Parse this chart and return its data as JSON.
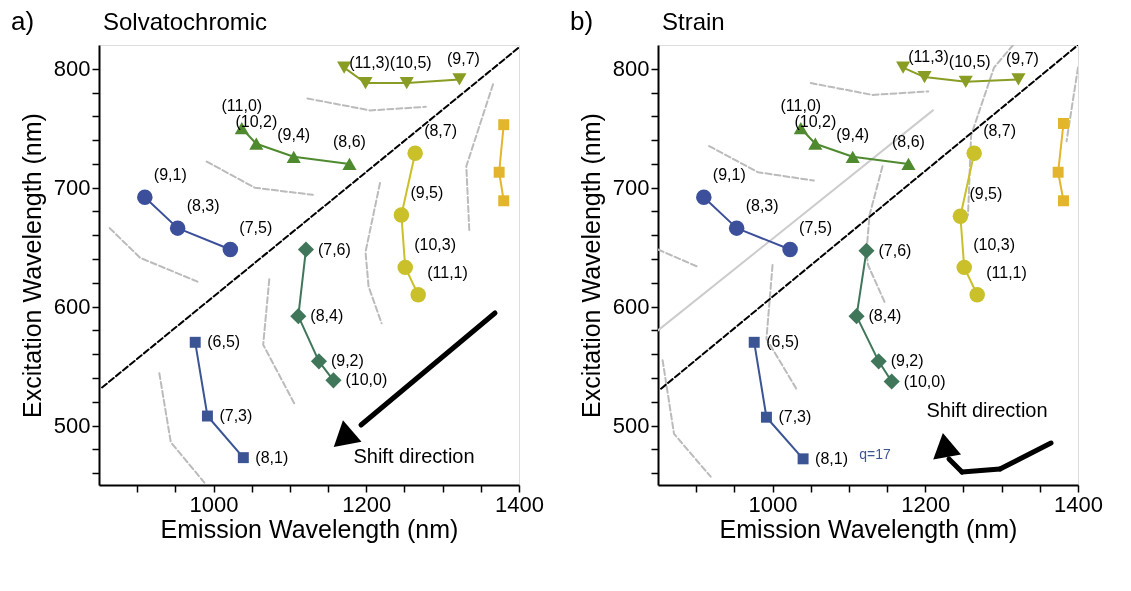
{
  "chart_data": [
    {
      "type": "line",
      "title": "Solvatochromic",
      "xlabel": "Emission Wavelength (nm)",
      "ylabel": "Excitation Wavelength (nm)",
      "xlim": [
        850,
        1400
      ],
      "ylim": [
        450,
        820
      ],
      "xticks": [
        {
          "value": 900,
          "label": null
        },
        {
          "value": 950,
          "label": null
        },
        1000,
        {
          "value": 1050,
          "label": null
        },
        {
          "value": 1100,
          "label": null
        },
        {
          "value": 1150,
          "label": null
        },
        1200,
        {
          "value": 1250,
          "label": null
        },
        {
          "value": 1300,
          "label": null
        },
        {
          "value": 1350,
          "label": null
        },
        1400
      ],
      "yticks": [
        {
          "value": 460,
          "label": null
        },
        {
          "value": 480,
          "label": null
        },
        500,
        {
          "value": 520,
          "label": null
        },
        {
          "value": 540,
          "label": null
        },
        {
          "value": 560,
          "label": null
        },
        {
          "value": 580,
          "label": null
        },
        600,
        {
          "value": 620,
          "label": null
        },
        {
          "value": 640,
          "label": null
        },
        {
          "value": 660,
          "label": null
        },
        {
          "value": 680,
          "label": null
        },
        700,
        {
          "value": 720,
          "label": null
        },
        {
          "value": 740,
          "label": null
        },
        {
          "value": 760,
          "label": null
        },
        {
          "value": 780,
          "label": null
        },
        800
      ],
      "grid": false,
      "annotations": [
        "a)",
        "Shift direction",
        {
          "text": "(9,1)",
          "x": 910,
          "y": 692
        },
        {
          "text": "(8,3)",
          "x": 953,
          "y": 666
        },
        {
          "text": "(7,5)",
          "x": 1022,
          "y": 648
        },
        {
          "text": "(11,0)",
          "x": 1037,
          "y": 750
        },
        {
          "text": "(10,2)",
          "x": 1056,
          "y": 737
        },
        {
          "text": "(9,4)",
          "x": 1105,
          "y": 726
        },
        {
          "text": "(8,6)",
          "x": 1178,
          "y": 720
        },
        {
          "text": "(11,3)",
          "x": 1199,
          "y": 788
        },
        {
          "text": "(10,5)",
          "x": 1253,
          "y": 788
        },
        {
          "text": "(9,7)",
          "x": 1322,
          "y": 791
        },
        {
          "text": "(8,7)",
          "x": 1264,
          "y": 729
        },
        {
          "text": "(9,5)",
          "x": 1246,
          "y": 677
        },
        {
          "text": "(10,3)",
          "x": 1251,
          "y": 633
        },
        {
          "text": "(11,1)",
          "x": 1268,
          "y": 610
        },
        {
          "text": "(7,6)",
          "x": 1121,
          "y": 648
        },
        {
          "text": "(8,4)",
          "x": 1111,
          "y": 592
        },
        {
          "text": "(9,2)",
          "x": 1138,
          "y": 554
        },
        {
          "text": "(10,0)",
          "x": 1157,
          "y": 538
        },
        {
          "text": "(6,5)",
          "x": 976,
          "y": 570
        },
        {
          "text": "(7,3)",
          "x": 992,
          "y": 508
        },
        {
          "text": "(8,1)",
          "x": 1039,
          "y": 473
        }
      ],
      "series": [
        {
          "color": "#bbbbbb",
          "line_style": "dashed",
          "marker": "none",
          "x": [
            1123,
            1205,
            1278
          ],
          "values": [
            775,
            765,
            768
          ]
        },
        {
          "color": "#bbbbbb",
          "line_style": "dashed",
          "marker": "none",
          "x": [
            991,
            1054,
            1130
          ],
          "values": [
            722,
            700,
            694
          ]
        },
        {
          "color": "#bbbbbb",
          "line_style": "dashed",
          "marker": "none",
          "x": [
            864,
            904,
            979
          ],
          "values": [
            666,
            641,
            621
          ]
        },
        {
          "color": "#bbbbbb",
          "line_style": "dashed",
          "marker": "none",
          "x": [
            929,
            944,
            988
          ],
          "values": [
            544,
            486,
            452
          ]
        },
        {
          "color": "#bbbbbb",
          "line_style": "dashed",
          "marker": "none",
          "x": [
            1073,
            1065,
            1107
          ],
          "values": [
            623,
            568,
            517
          ]
        },
        {
          "color": "#bbbbbb",
          "line_style": "dashed",
          "marker": "none",
          "x": [
            1218,
            1199,
            1203,
            1220
          ],
          "values": [
            704,
            646,
            617,
            586
          ]
        },
        {
          "color": "#bbbbbb",
          "line_style": "dashed",
          "marker": "none",
          "x": [
            1366,
            1331,
            1335
          ],
          "values": [
            787,
            718,
            663
          ]
        },
        {
          "color": "#000000",
          "line_style": "dashed",
          "marker": "none",
          "x": [
            854,
            1400
          ],
          "values": [
            532,
            818
          ]
        },
        {
          "color": "#3b4f9a",
          "line_style": "solid",
          "marker": "circle",
          "x": [
            910,
            953,
            1022
          ],
          "values": [
            692,
            666,
            648
          ]
        },
        {
          "color": "#4f8a2f",
          "line_style": "solid",
          "marker": "triangle",
          "x": [
            1037,
            1056,
            1105,
            1178
          ],
          "values": [
            750,
            737,
            726,
            720
          ]
        },
        {
          "color": "#899d24",
          "line_style": "solid",
          "marker": "triangle_down",
          "x": [
            1171,
            1199,
            1253,
            1322
          ],
          "values": [
            801,
            788,
            788,
            791
          ]
        },
        {
          "color": "#c9c02a",
          "line_style": "solid",
          "marker": "circle",
          "x": [
            1264,
            1246,
            1251,
            1268
          ],
          "values": [
            729,
            677,
            633,
            610
          ]
        },
        {
          "color": "#e2b52c",
          "line_style": "solid",
          "marker": "square",
          "x": [
            1380,
            1374,
            1380
          ],
          "values": [
            753,
            713,
            689
          ]
        },
        {
          "color": "#40765a",
          "line_style": "solid",
          "marker": "diamond",
          "x": [
            1121,
            1111,
            1138,
            1157
          ],
          "values": [
            648,
            592,
            554,
            538
          ]
        },
        {
          "color": "#3b5494",
          "line_style": "solid",
          "marker": "square",
          "x": [
            976,
            992,
            1039
          ],
          "values": [
            570,
            508,
            473
          ]
        }
      ]
    },
    {
      "type": "line",
      "title": "Strain",
      "xlabel": "Emission Wavelength (nm)",
      "ylabel": "Excitation Wavelength (nm)",
      "xlim": [
        850,
        1400
      ],
      "ylim": [
        450,
        820
      ],
      "xticks": [
        {
          "value": 900,
          "label": null
        },
        {
          "value": 950,
          "label": null
        },
        1000,
        {
          "value": 1050,
          "label": null
        },
        {
          "value": 1100,
          "label": null
        },
        {
          "value": 1150,
          "label": null
        },
        1200,
        {
          "value": 1250,
          "label": null
        },
        {
          "value": 1300,
          "label": null
        },
        {
          "value": 1350,
          "label": null
        },
        1400
      ],
      "yticks": [
        {
          "value": 460,
          "label": null
        },
        {
          "value": 480,
          "label": null
        },
        500,
        {
          "value": 520,
          "label": null
        },
        {
          "value": 540,
          "label": null
        },
        {
          "value": 560,
          "label": null
        },
        {
          "value": 580,
          "label": null
        },
        600,
        {
          "value": 620,
          "label": null
        },
        {
          "value": 640,
          "label": null
        },
        {
          "value": 660,
          "label": null
        },
        {
          "value": 680,
          "label": null
        },
        700,
        {
          "value": 720,
          "label": null
        },
        {
          "value": 740,
          "label": null
        },
        {
          "value": 760,
          "label": null
        },
        {
          "value": 780,
          "label": null
        },
        800
      ],
      "grid": false,
      "annotations": [
        "b)",
        "Shift direction",
        "q=17",
        {
          "text": "(9,1)",
          "x": 910,
          "y": 692
        },
        {
          "text": "(8,3)",
          "x": 953,
          "y": 666
        },
        {
          "text": "(7,5)",
          "x": 1023,
          "y": 648
        },
        {
          "text": "(11,0)",
          "x": 1037,
          "y": 750
        },
        {
          "text": "(10,2)",
          "x": 1056,
          "y": 737
        },
        {
          "text": "(9,4)",
          "x": 1105,
          "y": 726
        },
        {
          "text": "(8,6)",
          "x": 1178,
          "y": 720
        },
        {
          "text": "(11,3)",
          "x": 1199,
          "y": 793
        },
        {
          "text": "(10,5)",
          "x": 1253,
          "y": 789
        },
        {
          "text": "(9,7)",
          "x": 1322,
          "y": 791
        },
        {
          "text": "(8,7)",
          "x": 1264,
          "y": 729
        },
        {
          "text": "(9,5)",
          "x": 1246,
          "y": 676
        },
        {
          "text": "(10,3)",
          "x": 1251,
          "y": 633
        },
        {
          "text": "(11,1)",
          "x": 1268,
          "y": 610
        },
        {
          "text": "(7,6)",
          "x": 1123,
          "y": 647
        },
        {
          "text": "(8,4)",
          "x": 1110,
          "y": 592
        },
        {
          "text": "(9,2)",
          "x": 1139,
          "y": 554
        },
        {
          "text": "(10,0)",
          "x": 1156,
          "y": 537
        },
        {
          "text": "(6,5)",
          "x": 976,
          "y": 570
        },
        {
          "text": "(7,3)",
          "x": 992,
          "y": 507
        },
        {
          "text": "(8,1)",
          "x": 1040,
          "y": 472
        }
      ],
      "series": [
        {
          "color": "#bbbbbb",
          "line_style": "dashed",
          "marker": "none",
          "x": [
            1050,
            1131,
            1204
          ],
          "values": [
            788,
            778,
            781
          ]
        },
        {
          "color": "#bbbbbb",
          "line_style": "dashed",
          "marker": "none",
          "x": [
            917,
            981,
            1054
          ],
          "values": [
            735,
            713,
            706
          ]
        },
        {
          "color": "#bbbbbb",
          "line_style": "dashed",
          "marker": "none",
          "x": [
            1315,
            1290,
            1260,
            1256
          ],
          "values": [
            820,
            801,
            744,
            677
          ]
        },
        {
          "color": "#bbbbbb",
          "line_style": "dashed",
          "marker": "none",
          "x": [
            1144,
            1127,
            1123,
            1125,
            1148
          ],
          "values": [
            718,
            677,
            646,
            635,
            602
          ]
        },
        {
          "color": "#bbbbbb",
          "line_style": "dashed",
          "marker": "none",
          "x": [
            1000,
            992,
            1033
          ],
          "values": [
            635,
            573,
            529
          ]
        },
        {
          "color": "#bbbbbb",
          "line_style": "dashed",
          "marker": "none",
          "x": [
            850,
            904
          ],
          "values": [
            648,
            633
          ]
        },
        {
          "color": "#bbbbbb",
          "line_style": "dashed",
          "marker": "none",
          "x": [
            856,
            871,
            919
          ],
          "values": [
            555,
            493,
            457
          ]
        },
        {
          "color": "#bbbbbb",
          "line_style": "dashed",
          "marker": "none",
          "x": [
            1400,
            1385
          ],
          "values": [
            801,
            739
          ]
        },
        {
          "color": "#cccccc",
          "line_style": "solid",
          "marker": "none",
          "x": [
            850,
            1210
          ],
          "values": [
            580,
            765
          ]
        },
        {
          "color": "#000000",
          "line_style": "dashed",
          "marker": "none",
          "x": [
            854,
            1400
          ],
          "values": [
            531,
            820
          ]
        },
        {
          "color": "#3b4f9a",
          "line_style": "solid",
          "marker": "circle",
          "x": [
            910,
            953,
            1023
          ],
          "values": [
            692,
            666,
            648
          ]
        },
        {
          "color": "#4f8a2f",
          "line_style": "solid",
          "marker": "triangle",
          "x": [
            1037,
            1056,
            1105,
            1178
          ],
          "values": [
            750,
            737,
            726,
            720
          ]
        },
        {
          "color": "#899d24",
          "line_style": "solid",
          "marker": "triangle_down",
          "x": [
            1171,
            1199,
            1253,
            1322
          ],
          "values": [
            801,
            793,
            789,
            791
          ]
        },
        {
          "color": "#c9c02a",
          "line_style": "solid",
          "marker": "circle",
          "x": [
            1264,
            1246,
            1251,
            1268
          ],
          "values": [
            729,
            676,
            633,
            610
          ]
        },
        {
          "color": "#e2b52c",
          "line_style": "solid",
          "marker": "square",
          "x": [
            1381,
            1374,
            1381
          ],
          "values": [
            754,
            713,
            689
          ]
        },
        {
          "color": "#40765a",
          "line_style": "solid",
          "marker": "diamond",
          "x": [
            1123,
            1110,
            1139,
            1156
          ],
          "values": [
            647,
            592,
            554,
            537
          ]
        },
        {
          "color": "#3b5494",
          "line_style": "solid",
          "marker": "square",
          "x": [
            976,
            992,
            1040
          ],
          "values": [
            570,
            507,
            472
          ]
        }
      ]
    }
  ]
}
